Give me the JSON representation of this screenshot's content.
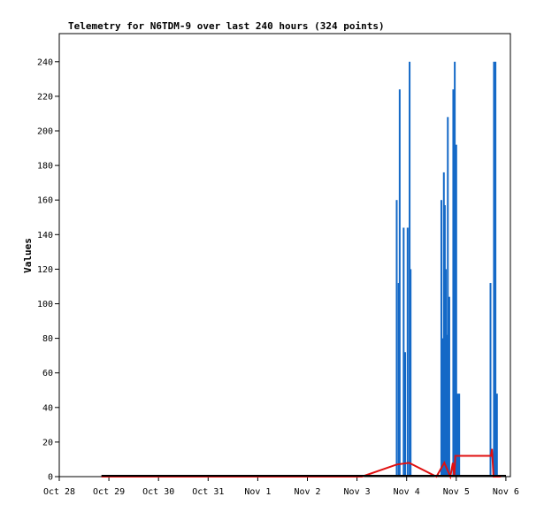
{
  "chart_data": {
    "type": "bar",
    "title": "Telemetry for N6TDM-9 over last 240 hours (324 points)",
    "ylabel": "Values",
    "xlabel": "",
    "ylim": [
      0,
      250
    ],
    "yticks": [
      0,
      20,
      40,
      60,
      80,
      100,
      120,
      140,
      160,
      180,
      200,
      220,
      240
    ],
    "xticks": [
      "Oct 28",
      "Oct 29",
      "Oct 30",
      "Oct 31",
      "Nov 1",
      "Nov 2",
      "Nov 3",
      "Nov 4",
      "Nov 5",
      "Nov 6"
    ],
    "grid": false,
    "legend": "none",
    "colors": {
      "bars": "#1469c7",
      "line": "#e01010",
      "baseline": "#000000"
    },
    "series": [
      {
        "type": "bar",
        "points": [
          {
            "x": 6.8,
            "y": 160
          },
          {
            "x": 6.84,
            "y": 112
          },
          {
            "x": 6.86,
            "y": 224
          },
          {
            "x": 6.94,
            "y": 144
          },
          {
            "x": 6.97,
            "y": 72
          },
          {
            "x": 7.02,
            "y": 144
          },
          {
            "x": 7.06,
            "y": 240
          },
          {
            "x": 7.08,
            "y": 120
          },
          {
            "x": 7.7,
            "y": 160
          },
          {
            "x": 7.72,
            "y": 80
          },
          {
            "x": 7.75,
            "y": 176
          },
          {
            "x": 7.77,
            "y": 157
          },
          {
            "x": 7.79,
            "y": 120
          },
          {
            "x": 7.81,
            "y": 82
          },
          {
            "x": 7.83,
            "y": 208
          },
          {
            "x": 7.86,
            "y": 104
          },
          {
            "x": 7.94,
            "y": 224
          },
          {
            "x": 7.97,
            "y": 240
          },
          {
            "x": 8.0,
            "y": 192
          },
          {
            "x": 8.03,
            "y": 48
          },
          {
            "x": 8.06,
            "y": 48
          },
          {
            "x": 8.69,
            "y": 112
          },
          {
            "x": 8.76,
            "y": 240
          },
          {
            "x": 8.79,
            "y": 240
          },
          {
            "x": 8.82,
            "y": 48
          }
        ]
      },
      {
        "type": "line",
        "points": [
          {
            "x": 0.85,
            "y": 0
          },
          {
            "x": 6.1,
            "y": 0
          },
          {
            "x": 6.8,
            "y": 7
          },
          {
            "x": 7.05,
            "y": 8
          },
          {
            "x": 7.6,
            "y": 0
          },
          {
            "x": 7.76,
            "y": 8
          },
          {
            "x": 7.88,
            "y": 0
          },
          {
            "x": 7.93,
            "y": 8
          },
          {
            "x": 7.96,
            "y": 0
          },
          {
            "x": 7.98,
            "y": 12
          },
          {
            "x": 8.7,
            "y": 12
          },
          {
            "x": 8.72,
            "y": 16
          },
          {
            "x": 8.75,
            "y": 0
          },
          {
            "x": 8.9,
            "y": 0
          }
        ]
      }
    ]
  }
}
